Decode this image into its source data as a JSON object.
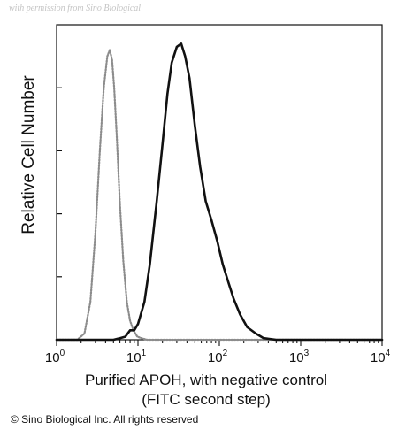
{
  "chart_data": {
    "type": "line",
    "watermark": "with permission from Sino Biological",
    "xlabel": "Purified APOH, with negative control",
    "xlabel_line2": "(FITC second step)",
    "ylabel": "Relative Cell Number",
    "x_scale": "log",
    "xlim": [
      1,
      10000
    ],
    "ylim": [
      0,
      100
    ],
    "x_ticks": [
      {
        "base": "10",
        "exp": "0",
        "value": 1
      },
      {
        "base": "10",
        "exp": "1",
        "value": 10
      },
      {
        "base": "10",
        "exp": "2",
        "value": 100
      },
      {
        "base": "10",
        "exp": "3",
        "value": 1000
      },
      {
        "base": "10",
        "exp": "4",
        "value": 10000
      }
    ],
    "y_ticks": [
      0,
      20,
      40,
      60,
      80,
      100
    ],
    "grid": false,
    "legend": "none",
    "series": [
      {
        "style": "dotted-gray",
        "color": "#8c8c8c",
        "x": [
          1.0,
          1.8,
          2.2,
          2.6,
          3.0,
          3.4,
          3.8,
          4.2,
          4.5,
          4.8,
          5.1,
          5.5,
          6.0,
          6.6,
          7.3,
          8.0,
          8.8,
          9.8,
          11,
          13,
          20,
          100,
          1000,
          10000
        ],
        "y": [
          0,
          0,
          2,
          12,
          34,
          60,
          80,
          90,
          92,
          89,
          80,
          64,
          43,
          25,
          12,
          6,
          3,
          1,
          0.5,
          0,
          0,
          0,
          0,
          0
        ]
      },
      {
        "style": "solid-black",
        "color": "#111111",
        "x": [
          1.0,
          5.0,
          6.0,
          7.0,
          8.0,
          9.0,
          10,
          12,
          14,
          17,
          20,
          23,
          26,
          30,
          34,
          38,
          43,
          50,
          58,
          68,
          80,
          95,
          110,
          130,
          150,
          180,
          220,
          280,
          350,
          500,
          1000,
          3000,
          10000
        ],
        "y": [
          0,
          0,
          0.5,
          1,
          3,
          3,
          5,
          12,
          24,
          44,
          62,
          78,
          88,
          93,
          94,
          90,
          83,
          68,
          55,
          44,
          38,
          31,
          24,
          18,
          13,
          8,
          4,
          2,
          0.5,
          0,
          0,
          0,
          0
        ]
      }
    ],
    "copyright": "© Sino Biological Inc. All rights reserved"
  }
}
